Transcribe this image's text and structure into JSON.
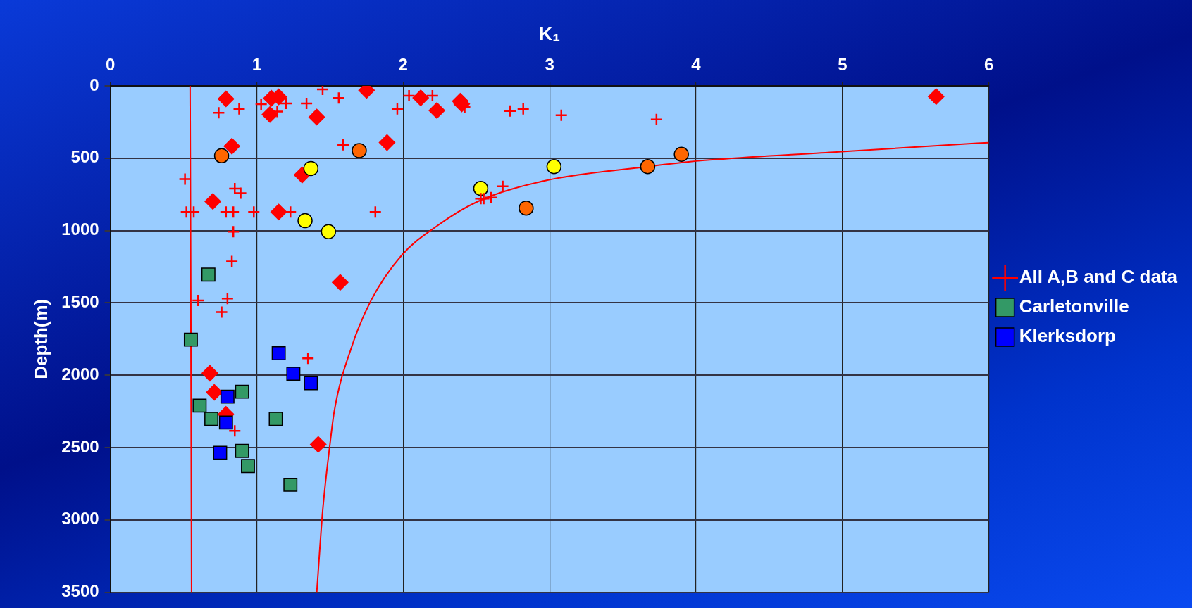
{
  "chart_data": {
    "type": "scatter",
    "xlabel": "K₁",
    "ylabel": "Depth(m)",
    "xlim": [
      0,
      6
    ],
    "xticks": [
      0,
      1,
      2,
      3,
      4,
      5,
      6
    ],
    "ylim": [
      3500,
      0
    ],
    "yticks": [
      0,
      500,
      1000,
      1500,
      2000,
      2500,
      3000,
      3500
    ],
    "grid": true,
    "legend": "right",
    "series": [
      {
        "name": "All A,B and C data",
        "color": "#ff0000",
        "marker": "cross",
        "x": [
          1.45,
          0.74,
          0.88,
          1.03,
          1.14,
          1.2,
          1.34,
          1.56,
          1.96,
          2.04,
          2.2,
          1.59,
          0.51,
          0.85,
          0.89,
          0.52,
          0.57,
          0.79,
          0.84,
          0.98,
          1.23,
          1.81,
          0.84,
          0.83,
          0.6,
          0.8,
          0.76,
          1.35,
          0.85,
          2.42,
          2.73,
          2.82,
          3.08,
          3.73,
          2.68,
          2.53,
          2.55,
          2.6
        ],
        "values": [
          24,
          186,
          159,
          126,
          178,
          122,
          122,
          84,
          159,
          68,
          68,
          407,
          645,
          710,
          742,
          872,
          872,
          872,
          872,
          872,
          872,
          872,
          1008,
          1213,
          1483,
          1470,
          1564,
          1884,
          2385,
          147,
          174,
          159,
          203,
          232,
          694,
          779,
          779,
          772
        ]
      },
      {
        "color": "#ffff00",
        "marker": "circle",
        "x": [
          1.37,
          1.33,
          1.49,
          2.53,
          3.03
        ],
        "values": [
          571,
          932,
          1008,
          709,
          558
        ]
      },
      {
        "color": "#ff6600",
        "marker": "circle",
        "x": [
          0.76,
          1.7,
          2.84,
          3.67,
          3.9
        ],
        "values": [
          483,
          447,
          845,
          558,
          473
        ]
      },
      {
        "name": "Carletonville",
        "color": "#339966",
        "marker": "square",
        "x": [
          0.67,
          0.55,
          0.9,
          0.61,
          0.69,
          1.13,
          0.9,
          0.94,
          1.23
        ],
        "values": [
          1305,
          1754,
          2114,
          2210,
          2302,
          2302,
          2523,
          2628,
          2757
        ]
      },
      {
        "name": "Klerksdorp",
        "color": "#0000ff",
        "marker": "square",
        "x": [
          1.15,
          1.25,
          1.37,
          0.8,
          0.79,
          0.75
        ],
        "values": [
          1848,
          1990,
          2055,
          2148,
          2327,
          2536
        ]
      },
      {
        "color": "#ff0000",
        "marker": "diamond",
        "x": [
          0.79,
          1.1,
          1.15,
          1.09,
          1.41,
          1.75,
          2.12,
          2.23,
          0.83,
          1.89,
          1.31,
          0.7,
          1.15,
          1.57,
          0.68,
          0.71,
          0.79,
          1.42,
          2.39,
          2.4,
          5.64
        ],
        "values": [
          90,
          86,
          76,
          198,
          216,
          31,
          83,
          170,
          417,
          392,
          616,
          799,
          872,
          1358,
          1986,
          2118,
          2270,
          2478,
          106,
          125,
          74
        ]
      },
      {
        "type": "line",
        "color": "#ff0000",
        "marker": "none",
        "x": [
          0.545,
          0.55,
          0.555
        ],
        "values": [
          0,
          1500,
          3500
        ]
      },
      {
        "type": "line",
        "color": "#ff0000",
        "marker": "none",
        "x": [
          1.41,
          1.45,
          1.5,
          1.53,
          1.65,
          1.78,
          1.99,
          2.23,
          2.51,
          2.98,
          3.67,
          3.96,
          4.94,
          5.92,
          6.0
        ],
        "values": [
          3500,
          2941,
          2478,
          2246,
          1799,
          1484,
          1171,
          969,
          799,
          653,
          558,
          524,
          458,
          397,
          393
        ]
      }
    ]
  }
}
